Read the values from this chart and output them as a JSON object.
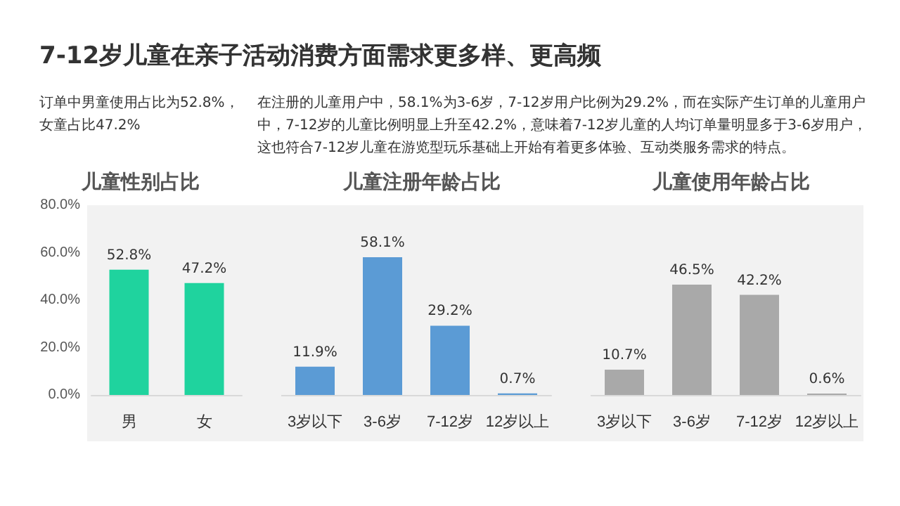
{
  "chart_data": [
    {
      "type": "bar",
      "title": "儿童性别占比",
      "annotations": [
        "7-12岁儿童在亲子活动消费方面需求更多样、更高频",
        "订单中男童使用占比为52.8%，女童占比47.2%"
      ],
      "categories": [
        "男",
        "女"
      ],
      "values": [
        52.8,
        47.2
      ],
      "value_labels": [
        "52.8%",
        "47.2%"
      ],
      "color": "#1fd39e",
      "ylim": [
        0,
        80
      ],
      "yticks": [
        {
          "value": 0,
          "label": "0.0%"
        },
        {
          "value": 20,
          "label": "20.0%"
        },
        {
          "value": 40,
          "label": "40.0%"
        },
        {
          "value": 60,
          "label": "60.0%"
        },
        {
          "value": 80,
          "label": "80.0%"
        }
      ],
      "grid": false
    },
    {
      "type": "bar",
      "title": "儿童注册年龄占比",
      "annotations": [
        "在注册的儿童用户中，58.1%为3-6岁，7-12岁用户比例为29.2%，而在实际产生订单的儿童用户中，7-12岁的儿童比例明显上升至42.2%，意味着7-12岁儿童的人均订单量明显多于3-6岁用户，这也符合7-12岁儿童在游览型玩乐基础上开始有着更多体验、互动类服务需求的特点。"
      ],
      "categories": [
        "3岁以下",
        "3-6岁",
        "7-12岁",
        "12岁以上"
      ],
      "values": [
        11.9,
        58.1,
        29.2,
        0.7
      ],
      "value_labels": [
        "11.9%",
        "58.1%",
        "29.2%",
        "0.7%"
      ],
      "color": "#5b9bd5",
      "ylim": [
        0,
        80
      ],
      "tick_labels": "x",
      "grid": false
    },
    {
      "type": "bar",
      "title": "儿童使用年龄占比",
      "categories": [
        "3岁以下",
        "3-6岁",
        "7-12岁",
        "12岁以上"
      ],
      "values": [
        10.7,
        46.5,
        42.2,
        0.6
      ],
      "value_labels": [
        "10.7%",
        "46.5%",
        "42.2%",
        "0.6%"
      ],
      "color": "#a9a9a9",
      "ylim": [
        0,
        80
      ],
      "tick_labels": "x",
      "grid": false
    }
  ]
}
